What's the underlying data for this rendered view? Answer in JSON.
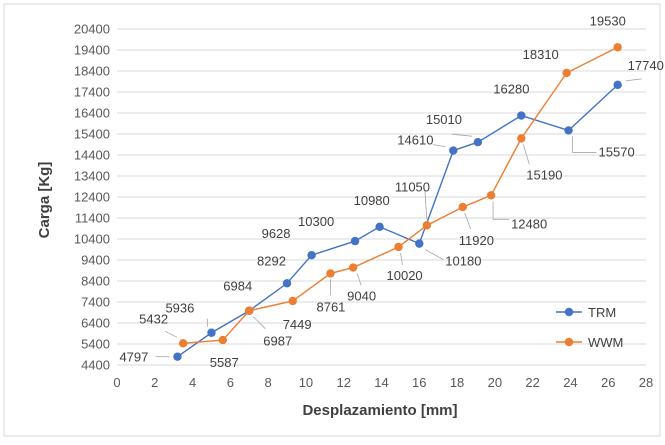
{
  "chart_data": {
    "type": "line",
    "title": "",
    "xlabel": "Desplazamiento [mm]",
    "ylabel": "Carga [Kg]",
    "xlim": [
      0,
      28
    ],
    "ylim": [
      4400,
      20400
    ],
    "xticks": [
      0,
      2,
      4,
      6,
      8,
      10,
      12,
      14,
      16,
      18,
      20,
      22,
      24,
      26,
      28
    ],
    "yticks": [
      4400,
      5400,
      6400,
      7400,
      8400,
      9400,
      10400,
      11400,
      12400,
      13400,
      14400,
      15400,
      16400,
      17400,
      18400,
      19400,
      20400
    ],
    "grid": "horizontal",
    "legend_position": "bottom-right",
    "series": [
      {
        "name": "TRM",
        "color": "#4472C4",
        "points": [
          {
            "x": 3.2,
            "y": 4797,
            "label": "4797"
          },
          {
            "x": 5.0,
            "y": 5936,
            "label": "5936"
          },
          {
            "x": 7.0,
            "y": 6984,
            "label": "6984"
          },
          {
            "x": 9.0,
            "y": 8292,
            "label": "8292"
          },
          {
            "x": 10.3,
            "y": 9628,
            "label": "9628"
          },
          {
            "x": 12.6,
            "y": 10300,
            "label": "10300"
          },
          {
            "x": 13.9,
            "y": 10980,
            "label": "10980"
          },
          {
            "x": 16.0,
            "y": 10180,
            "label": "10180"
          },
          {
            "x": 17.8,
            "y": 14610,
            "label": "14610"
          },
          {
            "x": 19.1,
            "y": 15010,
            "label": "15010"
          },
          {
            "x": 21.4,
            "y": 16280,
            "label": "16280"
          },
          {
            "x": 23.9,
            "y": 15570,
            "label": "15570"
          },
          {
            "x": 26.5,
            "y": 17740,
            "label": "17740"
          }
        ]
      },
      {
        "name": "WWM",
        "color": "#ED7D31",
        "points": [
          {
            "x": 3.5,
            "y": 5432,
            "label": "5432"
          },
          {
            "x": 5.6,
            "y": 5587,
            "label": "5587"
          },
          {
            "x": 7.0,
            "y": 6987,
            "label": "6987"
          },
          {
            "x": 9.3,
            "y": 7449,
            "label": "7449"
          },
          {
            "x": 11.3,
            "y": 8761,
            "label": "8761"
          },
          {
            "x": 12.5,
            "y": 9040,
            "label": "9040"
          },
          {
            "x": 14.9,
            "y": 10020,
            "label": "10020"
          },
          {
            "x": 16.4,
            "y": 11050,
            "label": "11050"
          },
          {
            "x": 18.3,
            "y": 11920,
            "label": "11920"
          },
          {
            "x": 19.8,
            "y": 12480,
            "label": "12480"
          },
          {
            "x": 21.4,
            "y": 15190,
            "label": "15190"
          },
          {
            "x": 23.8,
            "y": 18310,
            "label": "18310"
          },
          {
            "x": 26.5,
            "y": 19530,
            "label": "19530"
          }
        ]
      }
    ]
  }
}
